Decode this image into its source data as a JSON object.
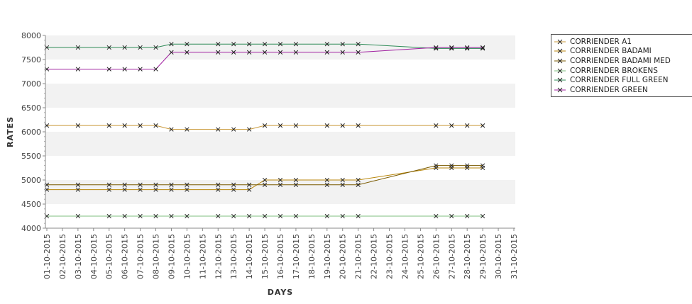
{
  "chart_data": {
    "type": "line",
    "title": "",
    "xlabel": "DAYS",
    "ylabel": "RATES",
    "ylim": [
      4000,
      8000
    ],
    "yticks": [
      4000,
      4500,
      5000,
      5500,
      6000,
      6500,
      7000,
      7500,
      8000
    ],
    "grid": "alternating horizontal bands",
    "legend_position": "right",
    "categories": [
      "01-10-2015",
      "02-10-2015",
      "03-10-2015",
      "04-10-2015",
      "05-10-2015",
      "06-10-2015",
      "07-10-2015",
      "08-10-2015",
      "09-10-2015",
      "10-10-2015",
      "11-10-2015",
      "12-10-2015",
      "13-10-2015",
      "14-10-2015",
      "15-10-2015",
      "16-10-2015",
      "17-10-2015",
      "18-10-2015",
      "19-10-2015",
      "20-10-2015",
      "21-10-2015",
      "22-10-2015",
      "23-10-2015",
      "24-10-2015",
      "25-10-2015",
      "26-10-2015",
      "27-10-2015",
      "28-10-2015",
      "29-10-2015",
      "30-10-2015",
      "31-10-2015"
    ],
    "series": [
      {
        "name": "CORRIENDER A1",
        "color": "#c9993a",
        "x": [
          "01-10-2015",
          "03-10-2015",
          "05-10-2015",
          "06-10-2015",
          "07-10-2015",
          "08-10-2015",
          "09-10-2015",
          "10-10-2015",
          "12-10-2015",
          "13-10-2015",
          "14-10-2015",
          "15-10-2015",
          "16-10-2015",
          "17-10-2015",
          "19-10-2015",
          "20-10-2015",
          "21-10-2015",
          "26-10-2015",
          "27-10-2015",
          "28-10-2015",
          "29-10-2015"
        ],
        "values": [
          6130,
          6130,
          6130,
          6130,
          6130,
          6130,
          6050,
          6050,
          6050,
          6050,
          6050,
          6130,
          6130,
          6130,
          6130,
          6130,
          6130,
          6130,
          6130,
          6130,
          6130
        ]
      },
      {
        "name": "CORRIENDER BADAMI",
        "color": "#b8860b",
        "x": [
          "01-10-2015",
          "03-10-2015",
          "05-10-2015",
          "06-10-2015",
          "07-10-2015",
          "08-10-2015",
          "09-10-2015",
          "10-10-2015",
          "12-10-2015",
          "13-10-2015",
          "14-10-2015",
          "15-10-2015",
          "16-10-2015",
          "17-10-2015",
          "19-10-2015",
          "20-10-2015",
          "21-10-2015",
          "26-10-2015",
          "27-10-2015",
          "28-10-2015",
          "29-10-2015"
        ],
        "values": [
          4800,
          4800,
          4800,
          4800,
          4800,
          4800,
          4800,
          4800,
          4800,
          4800,
          4800,
          5000,
          5000,
          5000,
          5000,
          5000,
          5000,
          5250,
          5250,
          5250,
          5250
        ]
      },
      {
        "name": "CORRIENDER BADAMI MED",
        "color": "#7a5a00",
        "x": [
          "01-10-2015",
          "03-10-2015",
          "05-10-2015",
          "06-10-2015",
          "07-10-2015",
          "08-10-2015",
          "09-10-2015",
          "10-10-2015",
          "12-10-2015",
          "13-10-2015",
          "14-10-2015",
          "15-10-2015",
          "16-10-2015",
          "17-10-2015",
          "19-10-2015",
          "20-10-2015",
          "21-10-2015",
          "26-10-2015",
          "27-10-2015",
          "28-10-2015",
          "29-10-2015"
        ],
        "values": [
          4900,
          4900,
          4900,
          4900,
          4900,
          4900,
          4900,
          4900,
          4900,
          4900,
          4900,
          4900,
          4900,
          4900,
          4900,
          4900,
          4900,
          5300,
          5300,
          5300,
          5300
        ]
      },
      {
        "name": "CORRIENDER BROKENS",
        "color": "#7fbf7f",
        "x": [
          "01-10-2015",
          "03-10-2015",
          "05-10-2015",
          "06-10-2015",
          "07-10-2015",
          "08-10-2015",
          "09-10-2015",
          "10-10-2015",
          "12-10-2015",
          "13-10-2015",
          "14-10-2015",
          "15-10-2015",
          "16-10-2015",
          "17-10-2015",
          "19-10-2015",
          "20-10-2015",
          "21-10-2015",
          "26-10-2015",
          "27-10-2015",
          "28-10-2015",
          "29-10-2015"
        ],
        "values": [
          4250,
          4250,
          4250,
          4250,
          4250,
          4250,
          4250,
          4250,
          4250,
          4250,
          4250,
          4250,
          4250,
          4250,
          4250,
          4250,
          4250,
          4250,
          4250,
          4250,
          4250
        ]
      },
      {
        "name": "CORRIENDER FULL GREEN",
        "color": "#2e8b57",
        "x": [
          "01-10-2015",
          "03-10-2015",
          "05-10-2015",
          "06-10-2015",
          "07-10-2015",
          "08-10-2015",
          "09-10-2015",
          "10-10-2015",
          "12-10-2015",
          "13-10-2015",
          "14-10-2015",
          "15-10-2015",
          "16-10-2015",
          "17-10-2015",
          "19-10-2015",
          "20-10-2015",
          "21-10-2015",
          "26-10-2015",
          "27-10-2015",
          "28-10-2015",
          "29-10-2015"
        ],
        "values": [
          7750,
          7750,
          7750,
          7750,
          7750,
          7750,
          7820,
          7820,
          7820,
          7820,
          7820,
          7820,
          7820,
          7820,
          7820,
          7820,
          7820,
          7730,
          7730,
          7730,
          7730
        ]
      },
      {
        "name": "CORRIENDER GREEN",
        "color": "#a020a0",
        "x": [
          "01-10-2015",
          "03-10-2015",
          "05-10-2015",
          "06-10-2015",
          "07-10-2015",
          "08-10-2015",
          "09-10-2015",
          "10-10-2015",
          "12-10-2015",
          "13-10-2015",
          "14-10-2015",
          "15-10-2015",
          "16-10-2015",
          "17-10-2015",
          "19-10-2015",
          "20-10-2015",
          "21-10-2015",
          "26-10-2015",
          "27-10-2015",
          "28-10-2015",
          "29-10-2015"
        ],
        "values": [
          7300,
          7300,
          7300,
          7300,
          7300,
          7300,
          7650,
          7650,
          7650,
          7650,
          7650,
          7650,
          7650,
          7650,
          7650,
          7650,
          7650,
          7750,
          7750,
          7750,
          7750
        ]
      }
    ]
  }
}
